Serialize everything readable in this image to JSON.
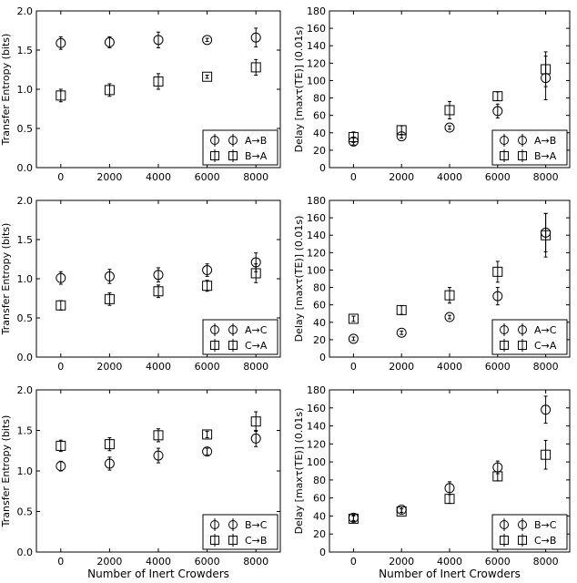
{
  "chart_data": [
    {
      "type": "scatter",
      "panel": "row1-left",
      "ylabel": "Transfer Entropy (bits)",
      "xlabel": "",
      "x": [
        0,
        2000,
        4000,
        6000,
        8000
      ],
      "xticks": [
        "0",
        "2000",
        "4000",
        "6000",
        "8000"
      ],
      "ylim": [
        0,
        2.0
      ],
      "yticks": [
        "0.0",
        "0.5",
        "1.0",
        "1.5",
        "2.0"
      ],
      "series": [
        {
          "name": "A→B",
          "marker": "circle",
          "values": [
            1.59,
            1.6,
            1.63,
            1.63,
            1.66
          ],
          "errors": [
            0.08,
            0.07,
            0.1,
            0.02,
            0.12
          ]
        },
        {
          "name": "B→A",
          "marker": "square",
          "values": [
            0.92,
            0.99,
            1.1,
            1.16,
            1.28
          ],
          "errors": [
            0.08,
            0.08,
            0.1,
            0.02,
            0.1
          ]
        }
      ]
    },
    {
      "type": "scatter",
      "panel": "row1-right",
      "ylabel": "Delay [maxτ(TE)] (0.01s)",
      "xlabel": "",
      "x": [
        0,
        2000,
        4000,
        6000,
        8000
      ],
      "xticks": [
        "0",
        "2000",
        "4000",
        "6000",
        "8000"
      ],
      "ylim": [
        0,
        180
      ],
      "yticks": [
        "0",
        "20",
        "40",
        "60",
        "80",
        "100",
        "120",
        "140",
        "160",
        "180"
      ],
      "series": [
        {
          "name": "A→B",
          "marker": "circle",
          "values": [
            30,
            36,
            46,
            65,
            103
          ],
          "errors": [
            4,
            2,
            2,
            8,
            25
          ]
        },
        {
          "name": "B→A",
          "marker": "square",
          "values": [
            35,
            43,
            66,
            82,
            113
          ],
          "errors": [
            6,
            5,
            10,
            5,
            20
          ]
        }
      ]
    },
    {
      "type": "scatter",
      "panel": "row2-left",
      "ylabel": "Transfer Entropy (bits)",
      "xlabel": "",
      "x": [
        0,
        2000,
        4000,
        6000,
        8000
      ],
      "xticks": [
        "0",
        "2000",
        "4000",
        "6000",
        "8000"
      ],
      "ylim": [
        0,
        2.0
      ],
      "yticks": [
        "0.0",
        "0.5",
        "1.0",
        "1.5",
        "2.0"
      ],
      "series": [
        {
          "name": "A→C",
          "marker": "circle",
          "values": [
            1.01,
            1.03,
            1.05,
            1.11,
            1.21
          ],
          "errors": [
            0.08,
            0.09,
            0.09,
            0.08,
            0.12
          ]
        },
        {
          "name": "C→A",
          "marker": "square",
          "values": [
            0.66,
            0.74,
            0.84,
            0.91,
            1.07
          ],
          "errors": [
            0.06,
            0.08,
            0.08,
            0.07,
            0.12
          ]
        }
      ]
    },
    {
      "type": "scatter",
      "panel": "row2-right",
      "ylabel": "Delay [maxτ(TE)] (0.01s)",
      "xlabel": "",
      "x": [
        0,
        2000,
        4000,
        6000,
        8000
      ],
      "xticks": [
        "0",
        "2000",
        "4000",
        "6000",
        "8000"
      ],
      "ylim": [
        0,
        180
      ],
      "yticks": [
        "0",
        "20",
        "40",
        "60",
        "80",
        "100",
        "120",
        "140",
        "160",
        "180"
      ],
      "series": [
        {
          "name": "A→C",
          "marker": "circle",
          "values": [
            21,
            28,
            46,
            70,
            143
          ],
          "errors": [
            2,
            2,
            2,
            10,
            22
          ]
        },
        {
          "name": "C→A",
          "marker": "square",
          "values": [
            44,
            54,
            71,
            98,
            140
          ],
          "errors": [
            3,
            5,
            9,
            12,
            25
          ]
        }
      ]
    },
    {
      "type": "scatter",
      "panel": "row3-left",
      "ylabel": "Transfer Entropy (bits)",
      "xlabel": "Number of Inert Crowders",
      "x": [
        0,
        2000,
        4000,
        6000,
        8000
      ],
      "xticks": [
        "0",
        "2000",
        "4000",
        "6000",
        "8000"
      ],
      "ylim": [
        0,
        2.0
      ],
      "yticks": [
        "0.0",
        "0.5",
        "1.0",
        "1.5",
        "2.0"
      ],
      "series": [
        {
          "name": "B→C",
          "marker": "circle",
          "values": [
            1.06,
            1.09,
            1.19,
            1.24,
            1.4
          ],
          "errors": [
            0.06,
            0.08,
            0.09,
            0.04,
            0.1
          ]
        },
        {
          "name": "C→B",
          "marker": "square",
          "values": [
            1.31,
            1.33,
            1.44,
            1.45,
            1.61
          ],
          "errors": [
            0.07,
            0.08,
            0.08,
            0.04,
            0.12
          ]
        }
      ]
    },
    {
      "type": "scatter",
      "panel": "row3-right",
      "ylabel": "Delay [maxτ(TE)] (0.01s)",
      "xlabel": "Number of Inert Crowders",
      "x": [
        0,
        2000,
        4000,
        6000,
        8000
      ],
      "xticks": [
        "0",
        "2000",
        "4000",
        "6000",
        "8000"
      ],
      "ylim": [
        0,
        180
      ],
      "yticks": [
        "0",
        "20",
        "40",
        "60",
        "80",
        "100",
        "120",
        "140",
        "160",
        "180"
      ],
      "series": [
        {
          "name": "B→C",
          "marker": "circle",
          "values": [
            38,
            47,
            71,
            94,
            158
          ],
          "errors": [
            3,
            3,
            7,
            7,
            15
          ]
        },
        {
          "name": "C→B",
          "marker": "square",
          "values": [
            37,
            45,
            59,
            84,
            108
          ],
          "errors": [
            3,
            3,
            5,
            5,
            16
          ]
        }
      ]
    }
  ],
  "legend_location": "lower-right",
  "marker_color": "#000000"
}
